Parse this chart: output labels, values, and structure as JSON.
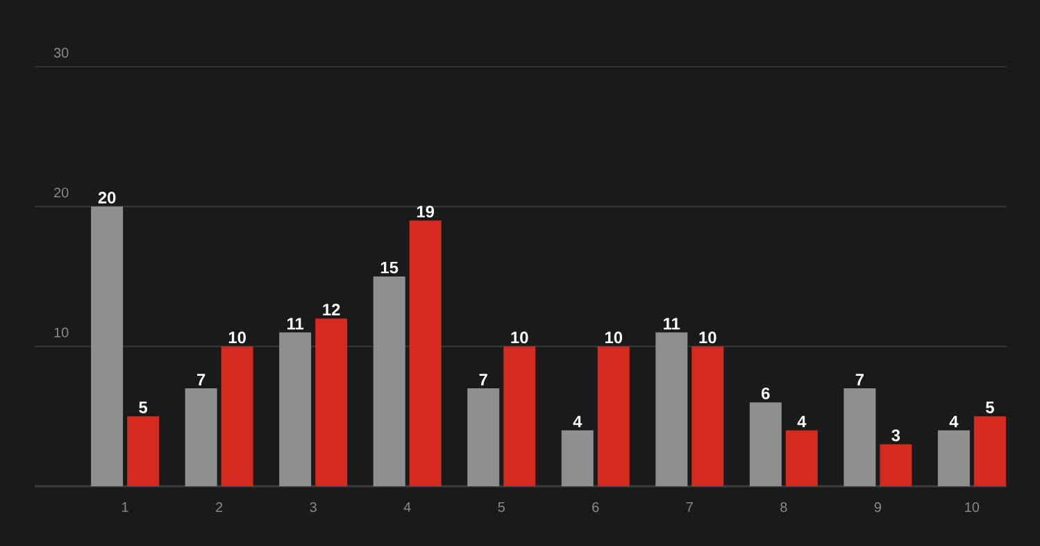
{
  "chart_data": {
    "type": "bar",
    "categories": [
      "1",
      "2",
      "3",
      "4",
      "5",
      "6",
      "7",
      "8",
      "9",
      "10"
    ],
    "series": [
      {
        "color": "#8f8f8f",
        "values": [
          20,
          7,
          11,
          15,
          7,
          4,
          11,
          6,
          7,
          4
        ]
      },
      {
        "color": "#d42a20",
        "values": [
          5,
          10,
          12,
          19,
          10,
          10,
          10,
          4,
          3,
          5
        ]
      }
    ],
    "ylim": [
      0,
      30
    ],
    "yticks": [
      10,
      20,
      30
    ],
    "grid": "y",
    "data_labels": true
  }
}
